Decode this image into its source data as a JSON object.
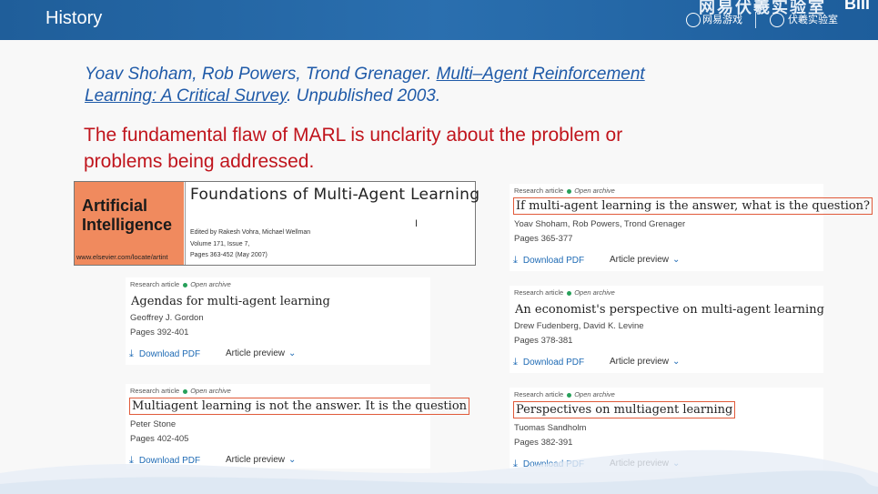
{
  "header": {
    "title": "History",
    "brand_top": "网易伏羲实验室",
    "brand_left": "网易游戏",
    "brand_right": "伏羲实验室",
    "brand_corner": "Bili"
  },
  "reference": {
    "authors": "Yoav Shoham, Rob Powers, Trond Grenager. ",
    "title": "Multi–Agent Reinforcement Learning: A Critical Survey",
    "suffix": ". Unpublished 2003."
  },
  "flaw_statement": "The fundamental flaw of MARL is unclarity about the problem or problems being addressed.",
  "cover": {
    "journal": "Artificial Intelligence",
    "url": "www.elsevier.com/locate/artint",
    "title": "Foundations of Multi-Agent Learning",
    "editors": "Edited by Rakesh Vohra, Michael Wellman",
    "volume": "Volume 171, Issue 7,",
    "pages": "Pages 363-452 (May 2007)"
  },
  "labels": {
    "research_article": "Research article",
    "open_archive": "Open archive",
    "download_pdf": "Download PDF",
    "article_preview": "Article preview"
  },
  "articles": [
    {
      "title": "If multi-agent learning is the answer, what is the question?",
      "authors": "Yoav Shoham, Rob Powers, Trond Grenager",
      "pages": "Pages 365-377"
    },
    {
      "title": "Agendas for multi-agent learning",
      "authors": "Geoffrey J. Gordon",
      "pages": "Pages 392-401"
    },
    {
      "title": "An economist's perspective on multi-agent learning",
      "authors": "Drew Fudenberg, David K. Levine",
      "pages": "Pages 378-381"
    },
    {
      "title": "Multiagent learning is not the answer. It is the question",
      "authors": "Peter Stone",
      "pages": "Pages 402-405"
    },
    {
      "title": "Perspectives on multiagent learning",
      "authors": "Tuomas Sandholm",
      "pages": "Pages 382-391"
    }
  ]
}
